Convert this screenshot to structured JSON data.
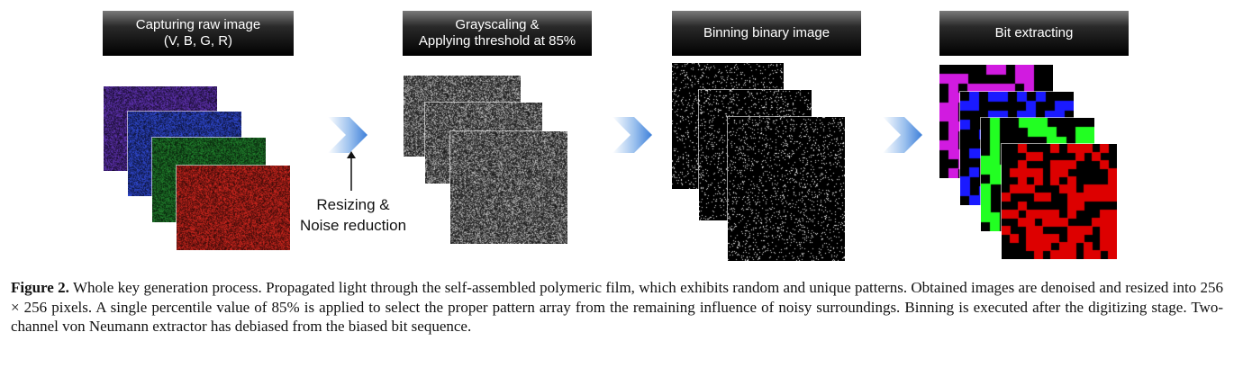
{
  "stages": [
    {
      "line1": "Capturing raw image",
      "line2": "(V, B, G, R)"
    },
    {
      "line1": "Grayscaling &",
      "line2": "Applying threshold at 85%"
    },
    {
      "line1": "Binning binary image",
      "line2": ""
    },
    {
      "line1": "Bit extracting",
      "line2": ""
    }
  ],
  "annotation": {
    "line1": "Resizing &",
    "line2": "Noise reduction"
  },
  "caption": {
    "label": "Figure 2.",
    "text": " Whole key generation process. Propagated light through the self-assembled polymeric film, which exhibits random and unique patterns. Obtained images are denoised and resized into 256 × 256 pixels. A single percentile value of 85% is applied to select the proper pattern array from the remaining influence of noisy surroundings. Binning is executed after the digitizing stage. Two-channel von Neumann extractor has debiased from the biased bit sequence."
  },
  "colors": {
    "violet": "#5a2fa8",
    "blue": "#2d45c8",
    "green": "#1f7a2a",
    "red": "#c4241c",
    "magenta": "#d11be0",
    "bit_blue": "#1a1aff",
    "bit_green": "#22ff22",
    "bit_red": "#dd0000",
    "arrow_blue": "#3d7fd9"
  }
}
